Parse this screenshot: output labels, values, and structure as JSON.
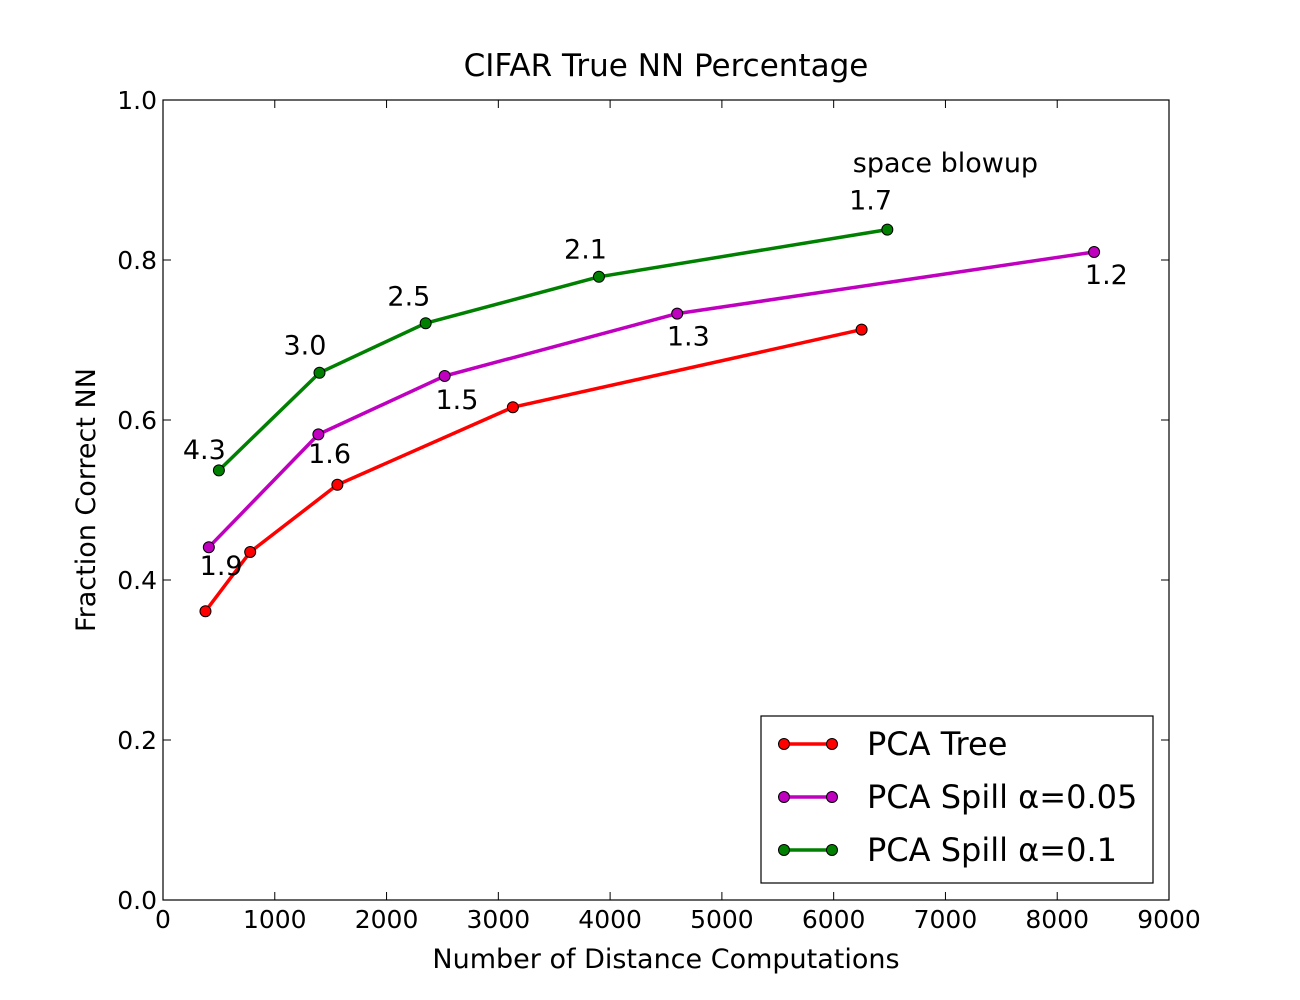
{
  "chart_data": {
    "type": "line",
    "title": "CIFAR True NN Percentage",
    "xlabel": "Number of Distance Computations",
    "ylabel": "Fraction Correct NN",
    "xlim": [
      0,
      9000
    ],
    "ylim": [
      0.0,
      1.0
    ],
    "xticks": [
      "0",
      "1000",
      "2000",
      "3000",
      "4000",
      "5000",
      "6000",
      "7000",
      "8000",
      "9000"
    ],
    "yticks": [
      "0.0",
      "0.2",
      "0.4",
      "0.6",
      "0.8",
      "1.0"
    ],
    "grid": false,
    "legend_position": "bottom-right",
    "series": [
      {
        "name": "PCA Tree",
        "color": "#ff0000",
        "x": [
          380,
          780,
          1560,
          3130,
          6250
        ],
        "y": [
          0.361,
          0.435,
          0.519,
          0.616,
          0.713
        ]
      },
      {
        "name": "PCA Spill α=0.05",
        "color": "#bf00bf",
        "x": [
          410,
          1390,
          2520,
          4600,
          8330
        ],
        "y": [
          0.441,
          0.582,
          0.655,
          0.733,
          0.81
        ]
      },
      {
        "name": "PCA Spill α=0.1",
        "color": "#008000",
        "x": [
          500,
          1400,
          2350,
          3900,
          6480
        ],
        "y": [
          0.537,
          0.659,
          0.721,
          0.779,
          0.838
        ]
      }
    ],
    "annotations": [
      {
        "text": "space blowup",
        "x": 7000,
        "y": 0.91
      },
      {
        "text": "4.3",
        "x": 370,
        "y": 0.551
      },
      {
        "text": "3.0",
        "x": 1270,
        "y": 0.682
      },
      {
        "text": "2.5",
        "x": 2200,
        "y": 0.743
      },
      {
        "text": "2.1",
        "x": 3780,
        "y": 0.802
      },
      {
        "text": "1.7",
        "x": 6330,
        "y": 0.863
      },
      {
        "text": "1.9",
        "x": 520,
        "y": 0.406
      },
      {
        "text": "1.6",
        "x": 1490,
        "y": 0.546
      },
      {
        "text": "1.5",
        "x": 2630,
        "y": 0.614
      },
      {
        "text": "1.3",
        "x": 4700,
        "y": 0.693
      },
      {
        "text": "1.2",
        "x": 8440,
        "y": 0.77
      }
    ]
  }
}
